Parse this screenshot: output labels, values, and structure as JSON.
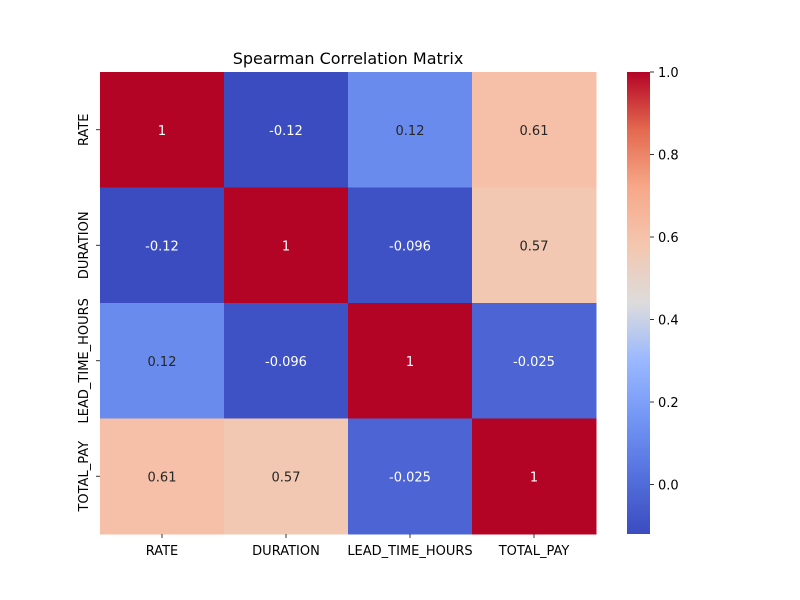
{
  "chart_data": {
    "type": "heatmap",
    "title": "Spearman Correlation Matrix",
    "xlabel": "",
    "ylabel": "",
    "x_categories": [
      "RATE",
      "DURATION",
      "LEAD_TIME_HOURS",
      "TOTAL_PAY"
    ],
    "y_categories": [
      "RATE",
      "DURATION",
      "LEAD_TIME_HOURS",
      "TOTAL_PAY"
    ],
    "values": [
      [
        1,
        -0.12,
        0.12,
        0.61
      ],
      [
        -0.12,
        1,
        -0.096,
        0.57
      ],
      [
        0.12,
        -0.096,
        1,
        -0.025
      ],
      [
        0.61,
        0.57,
        -0.025,
        1
      ]
    ],
    "annotations": [
      [
        "1",
        "-0.12",
        "0.12",
        "0.61"
      ],
      [
        "-0.12",
        "1",
        "-0.096",
        "0.57"
      ],
      [
        "0.12",
        "-0.096",
        "1",
        "-0.025"
      ],
      [
        "0.61",
        "0.57",
        "-0.025",
        "1"
      ]
    ],
    "colormap": "coolwarm",
    "colorbar": {
      "range": [
        -0.12,
        1.0
      ],
      "ticks": [
        0.0,
        0.2,
        0.4,
        0.6,
        0.8,
        1.0
      ],
      "tick_labels": [
        "0.0",
        "0.2",
        "0.4",
        "0.6",
        "0.8",
        "1.0"
      ]
    },
    "grid": false
  }
}
